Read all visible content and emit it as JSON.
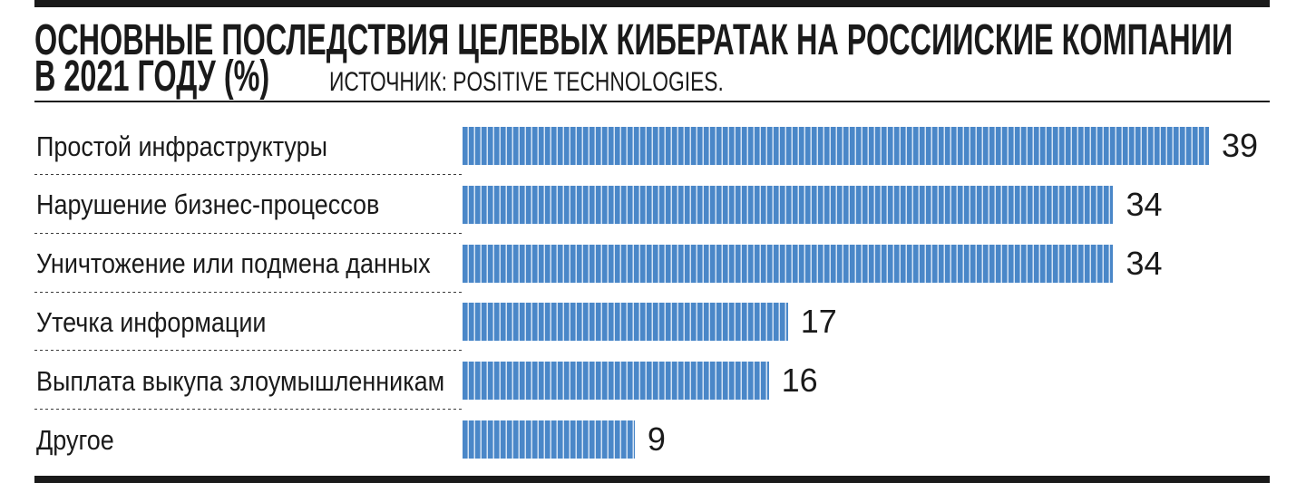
{
  "colors": {
    "bar": "#4a87c8",
    "bar_stripe": "#d3e2f3",
    "divider": "#3a3a3a",
    "rules": "#1a1a1a",
    "text": "#1a1a1a"
  },
  "chart_data": {
    "type": "bar",
    "orientation": "horizontal",
    "title": "ОСНОВНЫЕ ПОСЛЕДСТВИЯ ЦЕЛЕВЫХ КИБЕРАТАК НА РОССИЙСКИЕ КОМПАНИИ\nВ 2021 ГОДУ (%)",
    "source": "ИСТОЧНИК: POSITIVE TECHNOLOGIES.",
    "categories": [
      "Простой инфраструктуры",
      "Нарушение бизнес-процессов",
      "Уничтожение или подмена данных",
      "Утечка информации",
      "Выплата выкупа злоумышленникам",
      "Другое"
    ],
    "values": [
      39,
      34,
      34,
      17,
      16,
      9
    ],
    "data_labels": true,
    "grid": false,
    "legend": false
  }
}
